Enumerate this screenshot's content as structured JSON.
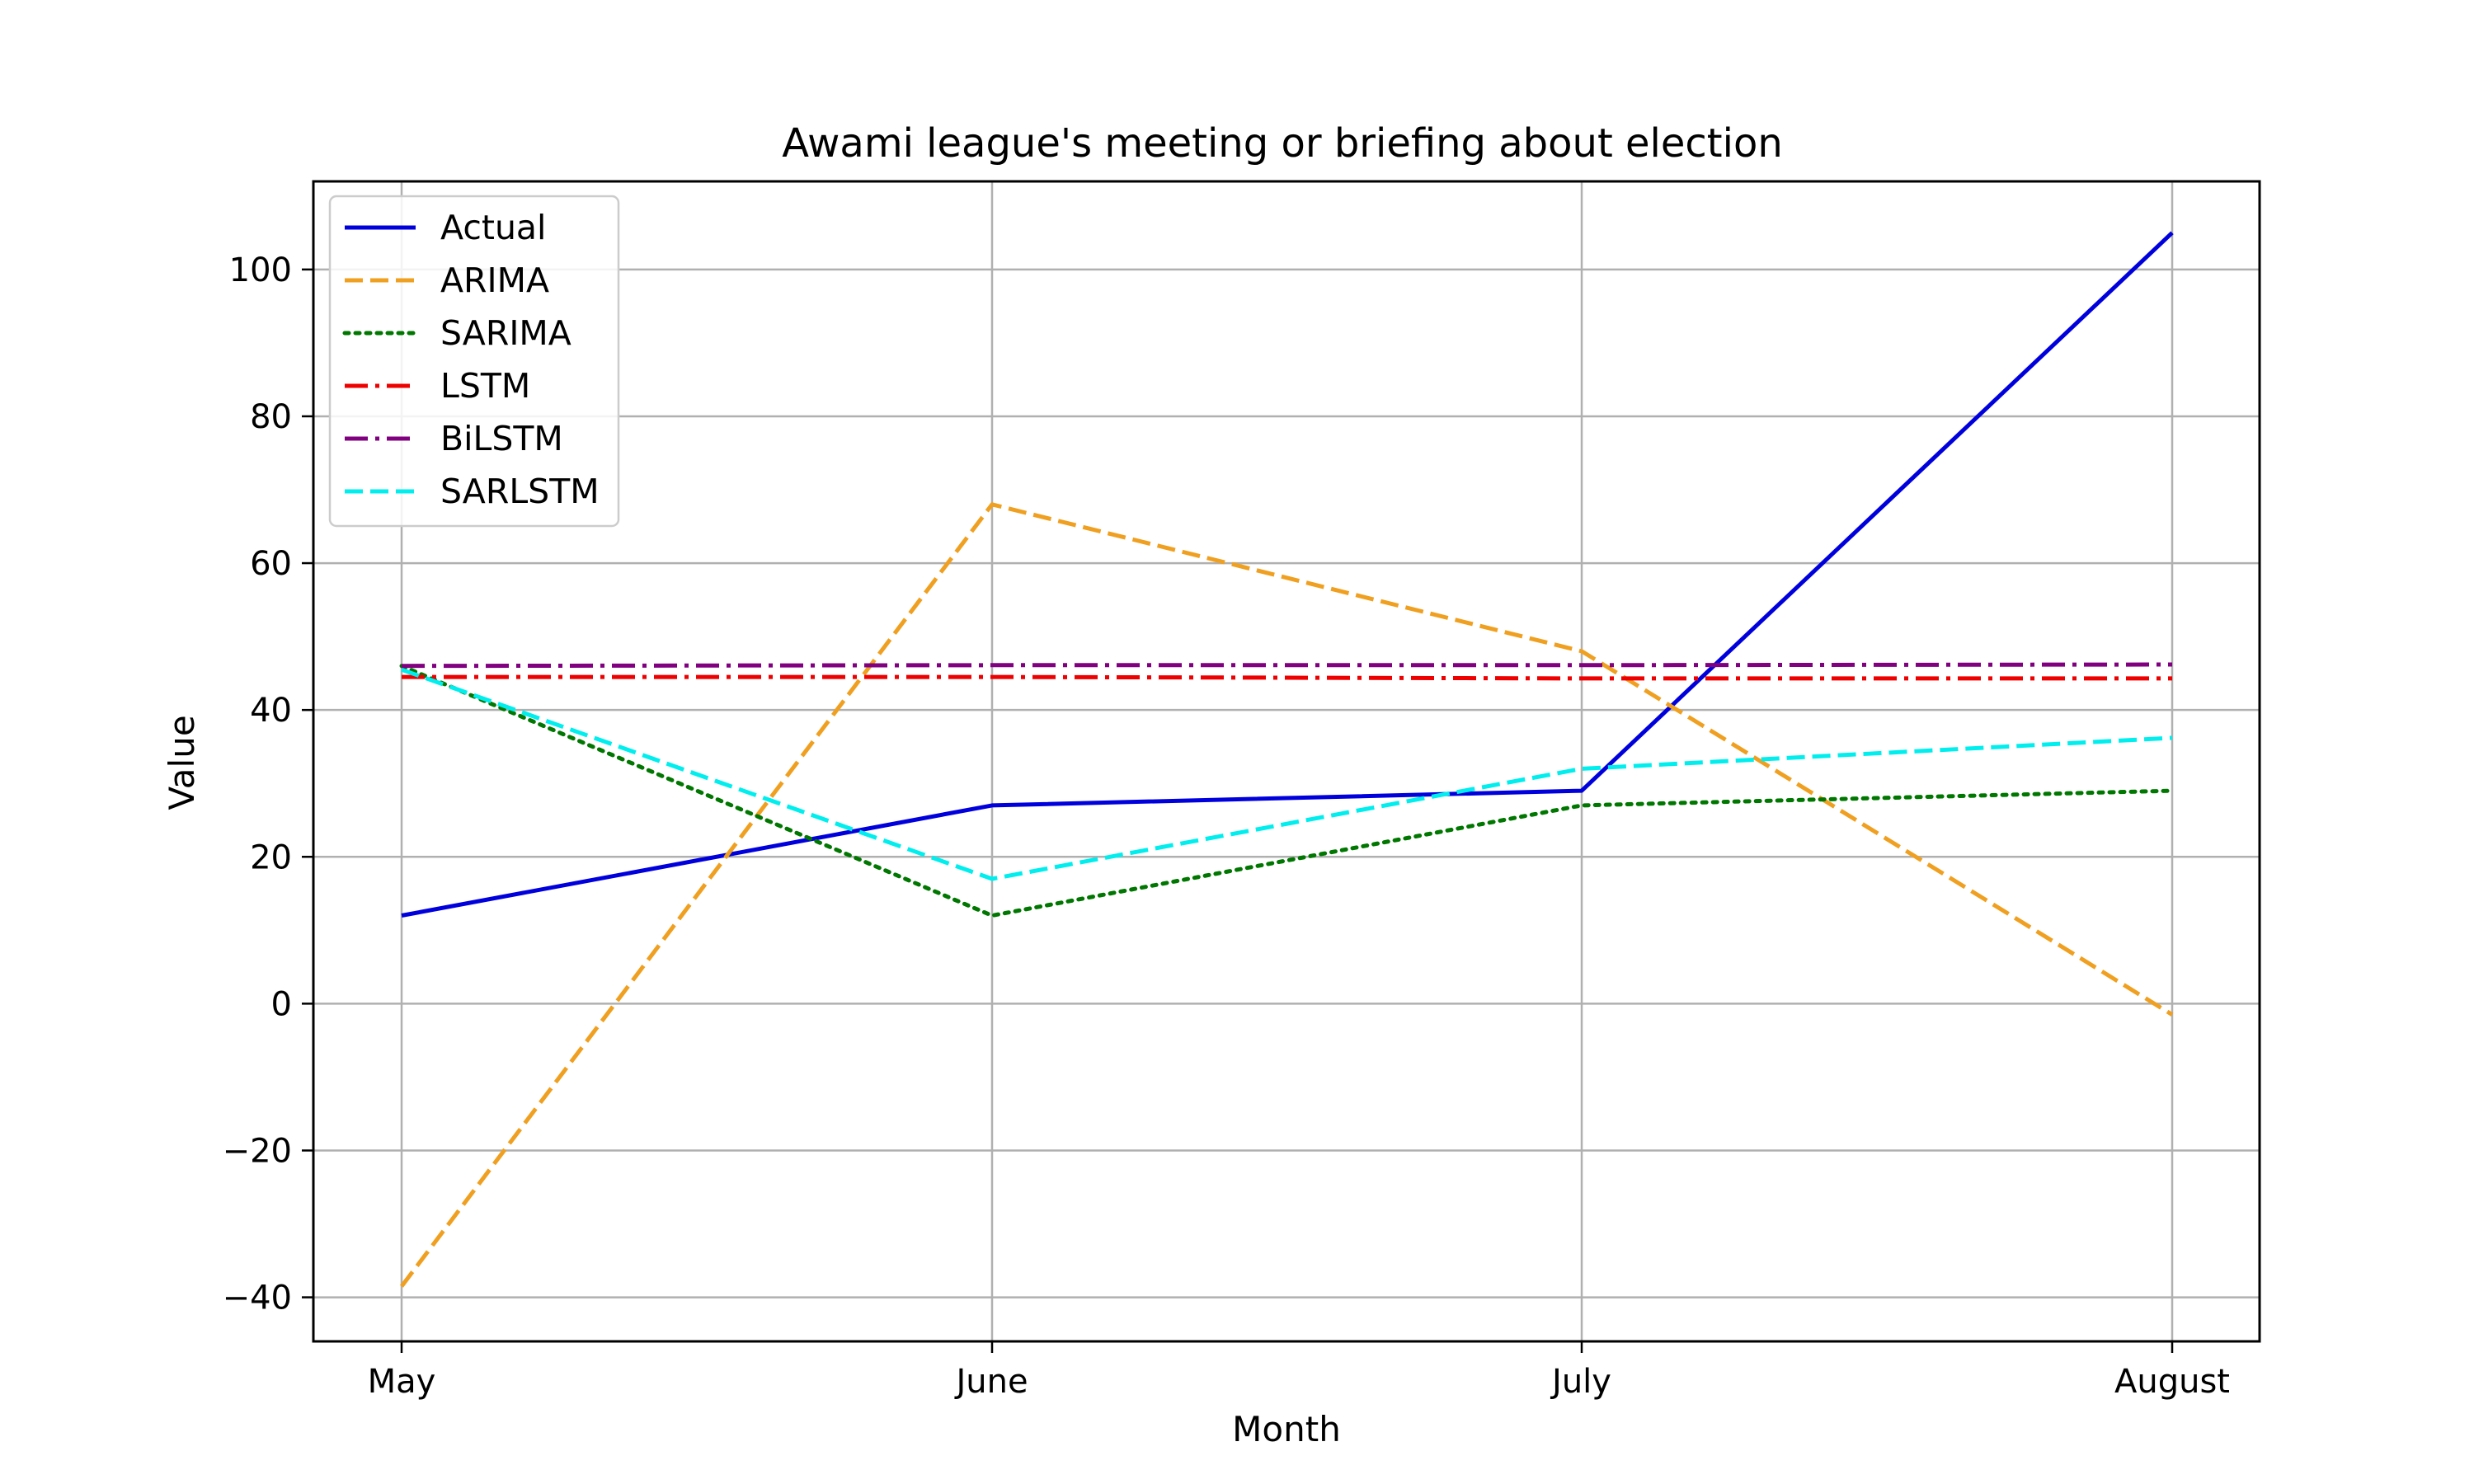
{
  "chart_data": {
    "type": "line",
    "title": "Awami league's meeting or briefing about election",
    "xlabel": "Month",
    "ylabel": "Value",
    "categories": [
      "May",
      "June",
      "July",
      "August"
    ],
    "ylim": [
      -46,
      112
    ],
    "yticks": [
      -40,
      -20,
      0,
      20,
      40,
      60,
      80,
      100
    ],
    "ytick_labels": [
      "−40",
      "−20",
      "0",
      "20",
      "40",
      "60",
      "80",
      "100"
    ],
    "grid": true,
    "legend_position": "top-left",
    "series": [
      {
        "name": "Actual",
        "values": [
          12,
          27,
          29,
          105
        ],
        "color": "#0000dd",
        "dash": "solid"
      },
      {
        "name": "ARIMA",
        "values": [
          -38.5,
          68,
          48,
          -1.5
        ],
        "color": "#f0a020",
        "dash": "dashed"
      },
      {
        "name": "SARIMA",
        "values": [
          46,
          12,
          27,
          29
        ],
        "color": "#007700",
        "dash": "dotted"
      },
      {
        "name": "LSTM",
        "values": [
          44.5,
          44.5,
          44.3,
          44.3
        ],
        "color": "#ee0000",
        "dash": "dashdot"
      },
      {
        "name": "BiLSTM",
        "values": [
          46,
          46.1,
          46.1,
          46.2
        ],
        "color": "#800080",
        "dash": "dashdot"
      },
      {
        "name": "SARLSTM",
        "values": [
          45.5,
          17,
          32,
          36.2
        ],
        "color": "#00eeee",
        "dash": "dashed"
      }
    ]
  }
}
